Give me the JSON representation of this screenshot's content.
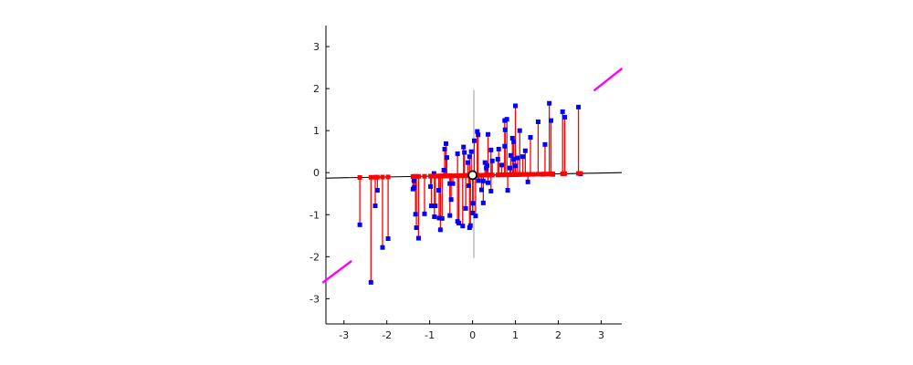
{
  "figure": {
    "background": "#ffffff",
    "title": ""
  },
  "chart_data": {
    "type": "scatter",
    "title": "",
    "xlabel": "",
    "ylabel": "",
    "grid": false,
    "legend": null,
    "xlim": [
      -3.42,
      3.48
    ],
    "ylim": [
      -3.6,
      3.5
    ],
    "xticks": [
      "-3",
      "-2",
      "-1",
      "0",
      "1",
      "2",
      "3"
    ],
    "xtick_values": [
      -3,
      -2,
      -1,
      0,
      1,
      2,
      3
    ],
    "yticks": [
      "-3",
      "-2",
      "-1",
      "0",
      "1",
      "2",
      "3"
    ],
    "ytick_values": [
      -3,
      -2,
      -1,
      0,
      1,
      2,
      3
    ],
    "colors": {
      "observations": "#0000FF",
      "fitted": "#FF0000",
      "stems": "#FF0000",
      "estimate_line": "#000000",
      "true_function": "#FF00FF",
      "vertical_guide": "#9B9B9B",
      "origin_marker_stroke": "#000000",
      "origin_marker_fill": "#FFFFFF",
      "axis": "#000000"
    },
    "observations": [
      [
        -2.63,
        -1.24
      ],
      [
        -2.37,
        -2.61
      ],
      [
        -2.27,
        -0.79
      ],
      [
        -2.22,
        -0.42
      ],
      [
        -2.1,
        -1.78
      ],
      [
        -1.97,
        -1.57
      ],
      [
        -1.39,
        -0.39
      ],
      [
        -1.37,
        -0.19
      ],
      [
        -1.36,
        -0.35
      ],
      [
        -1.33,
        -0.99
      ],
      [
        -1.31,
        -1.31
      ],
      [
        -1.26,
        -1.56
      ],
      [
        -1.12,
        -0.98
      ],
      [
        -0.98,
        -0.33
      ],
      [
        -0.96,
        -0.79
      ],
      [
        -0.9,
        -0.02
      ],
      [
        -0.89,
        -1.05
      ],
      [
        -0.87,
        -0.79
      ],
      [
        -0.79,
        -0.42
      ],
      [
        -0.78,
        -1.08
      ],
      [
        -0.75,
        -1.36
      ],
      [
        -0.71,
        -1.09
      ],
      [
        -0.67,
        0.06
      ],
      [
        -0.65,
        0.56
      ],
      [
        -0.62,
        0.69
      ],
      [
        -0.6,
        0.36
      ],
      [
        -0.53,
        -0.26
      ],
      [
        -0.53,
        -1.02
      ],
      [
        -0.5,
        -0.64
      ],
      [
        -0.46,
        -0.26
      ],
      [
        -0.35,
        0.45
      ],
      [
        -0.35,
        -1.16
      ],
      [
        -0.32,
        -1.2
      ],
      [
        -0.23,
        -1.27
      ],
      [
        -0.21,
        0.61
      ],
      [
        -0.19,
        0.48
      ],
      [
        -0.16,
        -0.85
      ],
      [
        -0.11,
        0.24
      ],
      [
        -0.09,
        -0.31
      ],
      [
        -0.07,
        0.38
      ],
      [
        -0.07,
        -1.31
      ],
      [
        -0.05,
        -1.26
      ],
      [
        -0.03,
        0.5
      ],
      [
        0.0,
        -0.96
      ],
      [
        0.01,
        -0.73
      ],
      [
        0.04,
        0.76
      ],
      [
        0.07,
        -1.03
      ],
      [
        0.11,
        0.98
      ],
      [
        0.13,
        0.9
      ],
      [
        0.14,
        -0.19
      ],
      [
        0.21,
        -0.41
      ],
      [
        0.25,
        -0.72
      ],
      [
        0.25,
        -0.2
      ],
      [
        0.29,
        0.24
      ],
      [
        0.32,
        0.11
      ],
      [
        0.34,
        0.17
      ],
      [
        0.36,
        0.91
      ],
      [
        0.36,
        -0.24
      ],
      [
        0.43,
        -0.44
      ],
      [
        0.43,
        0.54
      ],
      [
        0.46,
        0.28
      ],
      [
        0.59,
        0.32
      ],
      [
        0.61,
        0.56
      ],
      [
        0.68,
        0.18
      ],
      [
        0.75,
        1.24
      ],
      [
        0.76,
        1.02
      ],
      [
        0.75,
        0.63
      ],
      [
        0.8,
        1.27
      ],
      [
        0.82,
        -0.42
      ],
      [
        0.87,
        0.11
      ],
      [
        0.89,
        0.41
      ],
      [
        0.93,
        0.82
      ],
      [
        0.96,
        0.73
      ],
      [
        0.96,
        0.32
      ],
      [
        1.0,
        1.59
      ],
      [
        1.0,
        0.16
      ],
      [
        1.05,
        0.35
      ],
      [
        1.1,
        1.0
      ],
      [
        1.17,
        0.38
      ],
      [
        1.23,
        0.52
      ],
      [
        1.29,
        -0.22
      ],
      [
        1.35,
        0.84
      ],
      [
        1.42,
        -0.04
      ],
      [
        1.53,
        1.21
      ],
      [
        1.64,
        -0.04
      ],
      [
        1.69,
        0.67
      ],
      [
        1.79,
        1.65
      ],
      [
        1.83,
        1.24
      ],
      [
        1.87,
        -0.04
      ],
      [
        2.1,
        1.45
      ],
      [
        2.15,
        1.32
      ],
      [
        2.47,
        1.56
      ],
      [
        2.52,
        -0.03
      ]
    ],
    "estimate_line": {
      "points": [
        [
          -3.42,
          -0.13
        ],
        [
          3.48,
          0.0
        ]
      ]
    },
    "true_function_segments": [
      {
        "points": [
          [
            -3.5,
            -2.62
          ],
          [
            -2.82,
            -2.1
          ]
        ]
      },
      {
        "points": [
          [
            2.83,
            1.95
          ],
          [
            3.49,
            2.48
          ]
        ]
      }
    ],
    "vertical_guide": {
      "points": [
        [
          0.03,
          -2.03
        ],
        [
          0.03,
          1.97
        ]
      ]
    },
    "origin_marker": {
      "point": [
        0.0,
        -0.06
      ]
    }
  }
}
